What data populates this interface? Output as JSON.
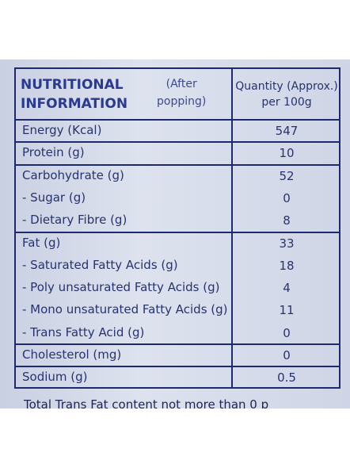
{
  "header": {
    "title": [
      "NUTRITIONAL",
      "INFORMATION"
    ],
    "note": [
      "(After",
      "popping)"
    ],
    "quantity": [
      "Quantity (Approx.)",
      "per 100g"
    ]
  },
  "table": {
    "groups": [
      [
        [
          "Energy (Kcal)",
          "547"
        ]
      ],
      [
        [
          "Protein (g)",
          "10"
        ]
      ],
      [
        [
          "Carbohydrate (g)",
          "52"
        ],
        [
          "- Sugar (g)",
          "0"
        ],
        [
          "- Dietary Fibre (g)",
          "8"
        ]
      ],
      [
        [
          "Fat (g)",
          "33"
        ],
        [
          "- Saturated Fatty Acids (g)",
          "18"
        ],
        [
          "- Poly unsaturated Fatty Acids (g)",
          "4"
        ],
        [
          "- Mono unsaturated Fatty Acids (g)",
          "11"
        ],
        [
          "- Trans Fatty Acid (g)",
          "0"
        ]
      ],
      [
        [
          "Cholesterol (mg)",
          "0"
        ]
      ],
      [
        [
          "Sodium (g)",
          "0.5"
        ]
      ]
    ]
  },
  "footnote": "Total Trans Fat content not more than 0 p"
}
